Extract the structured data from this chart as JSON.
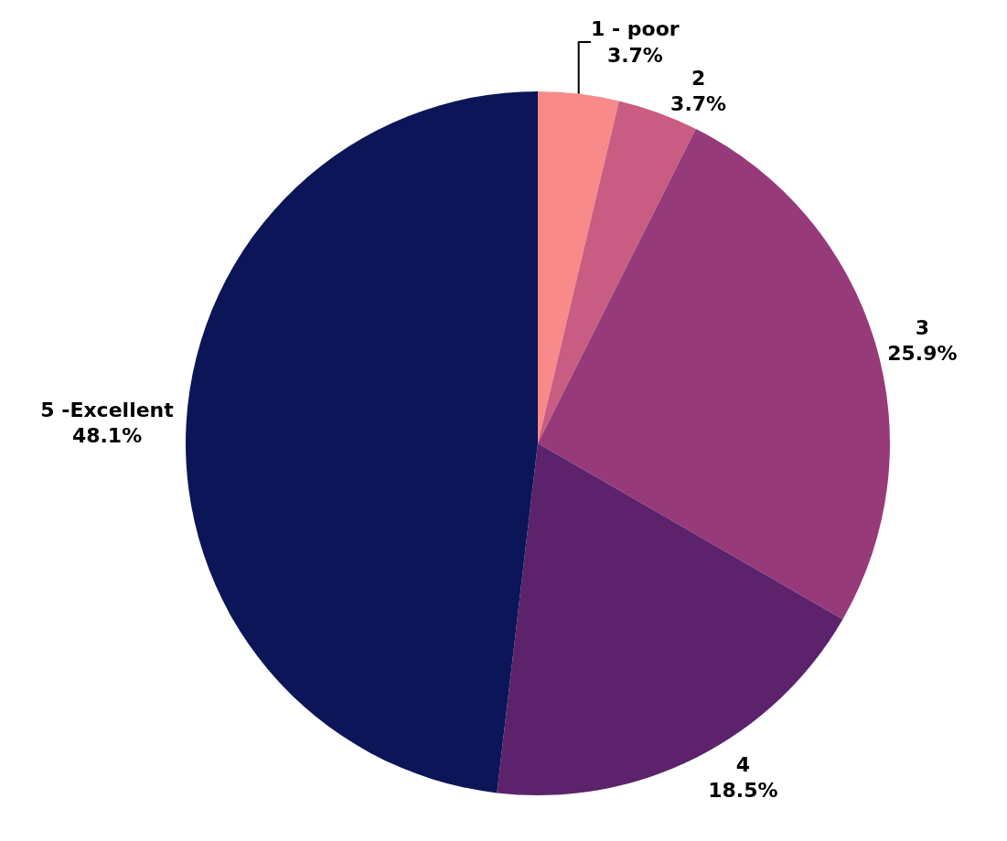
{
  "chart_data": {
    "type": "pie",
    "categories": [
      "1 - poor",
      "2",
      "3",
      "4",
      "5 -Excellent"
    ],
    "values": [
      3.7,
      3.7,
      25.9,
      18.5,
      48.1
    ],
    "value_labels": [
      "3.7%",
      "3.7%",
      "25.9%",
      "18.5%",
      "48.1%"
    ],
    "colors": [
      "#f88a8a",
      "#c95c82",
      "#973a7a",
      "#5c226c",
      "#0b1558"
    ],
    "legend": false
  }
}
